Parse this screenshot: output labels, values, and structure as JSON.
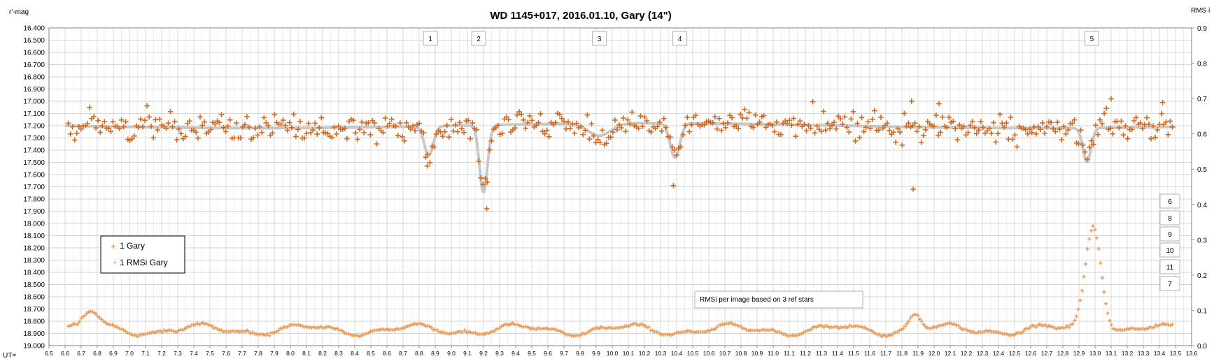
{
  "chart_data": {
    "type": "scatter",
    "title": "WD 1145+017, 2016.01.10,  Gary (14\")",
    "ylabel_left": "r'-mag",
    "ylabel_right": "RMS i",
    "xlabel": "UT=",
    "xlim": [
      6.5,
      13.6
    ],
    "ylim_left": [
      19.0,
      16.4
    ],
    "ylim_right": [
      0.0,
      0.9
    ],
    "x_ticks": [
      "6.5",
      "6.6",
      "6.7",
      "6.8",
      "6.9",
      "7.0",
      "7.1",
      "7.2",
      "7.3",
      "7.4",
      "7.5",
      "7.6",
      "7.7",
      "7.8",
      "7.9",
      "8.0",
      "8.1",
      "8.2",
      "8.3",
      "8.4",
      "8.5",
      "8.6",
      "8.7",
      "8.8",
      "8.9",
      "9.0",
      "9.1",
      "9.2",
      "9.3",
      "9.4",
      "9.5",
      "9.6",
      "9.7",
      "9.8",
      "9.9",
      "10.0",
      "10.1",
      "10.2",
      "10.3",
      "10.4",
      "10.5",
      "10.6",
      "10.7",
      "10.8",
      "10.9",
      "11.0",
      "11.1",
      "11.2",
      "11.3",
      "11.4",
      "11.5",
      "11.6",
      "11.7",
      "11.8",
      "11.9",
      "12.0",
      "12.1",
      "12.2",
      "12.3",
      "12.4",
      "12.5",
      "12.6",
      "12.7",
      "12.8",
      "12.9",
      "13.0",
      "13.1",
      "13.2",
      "13.3",
      "13.4",
      "13.5",
      "13.6"
    ],
    "y_ticks_left": [
      "16.400",
      "16.500",
      "16.600",
      "16.700",
      "16.800",
      "16.900",
      "17.000",
      "17.100",
      "17.200",
      "17.300",
      "17.400",
      "17.500",
      "17.600",
      "17.700",
      "17.800",
      "17.900",
      "18.000",
      "18.100",
      "18.200",
      "18.300",
      "18.400",
      "18.500",
      "18.600",
      "18.700",
      "18.800",
      "18.900",
      "19.000"
    ],
    "y_ticks_right": [
      "0.9",
      "0.8",
      "0.7",
      "0.6",
      "0.5",
      "0.4",
      "0.3",
      "0.2",
      "0.1",
      "0.0"
    ],
    "grid": true,
    "baseline_mag": 17.2,
    "model_dips": [
      {
        "center": 8.86,
        "depth": 0.24,
        "width": 0.028
      },
      {
        "center": 9.2,
        "depth": 0.55,
        "width": 0.025
      },
      {
        "center": 9.92,
        "depth": 0.1,
        "width": 0.07
      },
      {
        "center": 10.39,
        "depth": 0.28,
        "width": 0.03
      },
      {
        "center": 12.95,
        "depth": 0.28,
        "width": 0.025
      }
    ],
    "series": [
      {
        "name": "1 Gary",
        "axis": "left",
        "color": "#d2691e",
        "marker": "+",
        "x_range": [
          6.62,
          13.48
        ],
        "n_points": 520,
        "noise_mag": 0.055,
        "extra_points": [
          [
            11.87,
            17.72
          ],
          [
            9.22,
            17.88
          ],
          [
            8.85,
            17.53
          ],
          [
            10.38,
            17.69
          ],
          [
            11.86,
            17.0
          ],
          [
            13.1,
            16.98
          ],
          [
            12.03,
            17.02
          ],
          [
            13.42,
            17.01
          ]
        ]
      },
      {
        "name": "1 RMSi Gary",
        "axis": "right",
        "color": "#e8a060",
        "marker": "+",
        "x_range": [
          6.62,
          13.48
        ],
        "n_points": 600,
        "baseline_rms": 0.045,
        "bumps": [
          {
            "center": 6.76,
            "height": 0.045,
            "width": 0.05
          },
          {
            "center": 11.88,
            "height": 0.045,
            "width": 0.04
          },
          {
            "center": 12.99,
            "height": 0.3,
            "width": 0.05
          }
        ]
      }
    ],
    "event_labels": [
      {
        "label": "1",
        "x": 8.87
      },
      {
        "label": "2",
        "x": 9.17
      },
      {
        "label": "3",
        "x": 9.92
      },
      {
        "label": "4",
        "x": 10.42
      },
      {
        "label": "5",
        "x": 12.98
      }
    ],
    "side_labels": [
      "6",
      "8",
      "9",
      "10",
      "11",
      "7"
    ],
    "legend": {
      "placement": "left-middle",
      "entries": [
        "1 Gary",
        "1 RMSi Gary"
      ]
    },
    "annotations": [
      "RMSi per image based on 3 ref stars"
    ],
    "colors": {
      "mag": "#d2691e",
      "rms": "#e8a060",
      "model": "#c8c8c8",
      "grid": "#c8c8c8",
      "minor_grid": "#e6e6e6"
    }
  }
}
